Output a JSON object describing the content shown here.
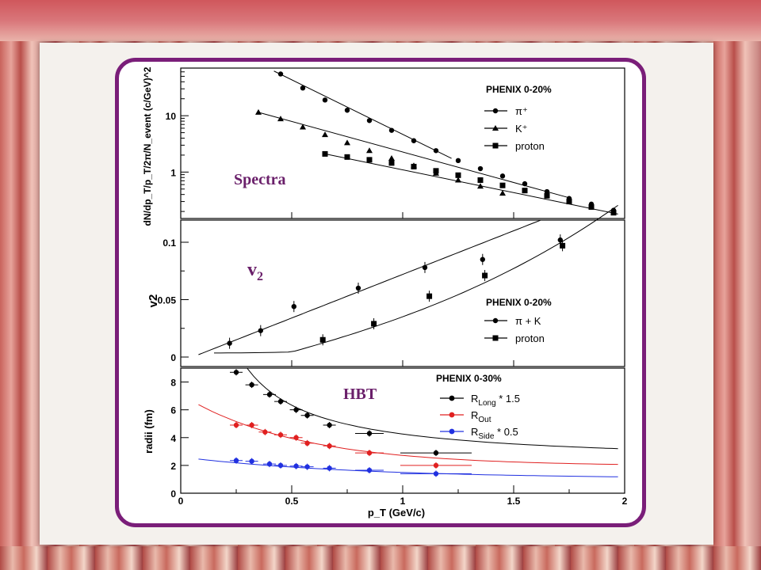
{
  "overlays": {
    "spectra": "Spectra",
    "v2": "v2",
    "hbt": "HBT"
  },
  "chart_data": [
    {
      "type": "scatter",
      "ylabel": "dN/dp_T/p_T/2π/N_event (c/GeV)^2",
      "yscale": "log",
      "ylim": [
        0.15,
        70
      ],
      "xlim": [
        0,
        2
      ],
      "yticklabels": [
        "10",
        "1"
      ],
      "legend_title": "PHENIX 0-20%",
      "legend_position": "top-right",
      "series": [
        {
          "name": "π⁺",
          "marker": "circle",
          "x": [
            0.45,
            0.55,
            0.65,
            0.75,
            0.85,
            0.95,
            1.05,
            1.15,
            1.25,
            1.35,
            1.45,
            1.55,
            1.65,
            1.75,
            1.85,
            1.95
          ],
          "y": [
            55,
            31,
            19,
            12.5,
            8.2,
            5.5,
            3.6,
            2.4,
            1.6,
            1.15,
            0.85,
            0.62,
            0.45,
            0.34,
            0.27,
            0.21
          ]
        },
        {
          "name": "K⁺",
          "marker": "triangle",
          "x": [
            0.35,
            0.45,
            0.55,
            0.65,
            0.75,
            0.85,
            0.95,
            1.05,
            1.15,
            1.25,
            1.35,
            1.45
          ],
          "y": [
            11.5,
            8.8,
            6.3,
            4.6,
            3.3,
            2.4,
            1.75,
            1.3,
            0.95,
            0.72,
            0.56,
            0.42
          ]
        },
        {
          "name": "proton",
          "marker": "square",
          "x": [
            0.65,
            0.75,
            0.85,
            0.95,
            1.05,
            1.15,
            1.25,
            1.35,
            1.45,
            1.55,
            1.65,
            1.75,
            1.85,
            1.95
          ],
          "y": [
            2.1,
            1.85,
            1.65,
            1.45,
            1.25,
            1.05,
            0.88,
            0.72,
            0.58,
            0.47,
            0.38,
            0.3,
            0.24,
            0.19
          ]
        }
      ]
    },
    {
      "type": "scatter",
      "ylabel": "v2",
      "xlim": [
        0,
        2
      ],
      "ylim": [
        0,
        0.11
      ],
      "yticks": [
        0,
        0.05,
        0.1
      ],
      "yticklabels": [
        "0",
        "0.05",
        "0.1"
      ],
      "legend_title": "PHENIX 0-20%",
      "legend_position": "bottom-right",
      "series": [
        {
          "name": "π + K",
          "marker": "circle",
          "x": [
            0.22,
            0.36,
            0.51,
            0.8,
            1.1,
            1.36,
            1.71
          ],
          "y": [
            0.012,
            0.023,
            0.044,
            0.06,
            0.078,
            0.085,
            0.102
          ]
        },
        {
          "name": "proton",
          "marker": "square",
          "x": [
            0.64,
            0.87,
            1.12,
            1.37,
            1.72
          ],
          "y": [
            0.015,
            0.029,
            0.053,
            0.071,
            0.097
          ]
        }
      ]
    },
    {
      "type": "scatter",
      "ylabel": "radii (fm)",
      "xlabel": "p_T (GeV/c)",
      "xlim": [
        0,
        2
      ],
      "ylim": [
        0,
        9
      ],
      "xticks": [
        0,
        0.5,
        1,
        1.5,
        2
      ],
      "xticklabels": [
        "0",
        "0.5",
        "1",
        "1.5",
        "2"
      ],
      "yticks": [
        0,
        2,
        4,
        6,
        8
      ],
      "yticklabels": [
        "0",
        "2",
        "4",
        "6",
        "8"
      ],
      "legend_title": "PHENIX 0-30%",
      "legend_position": "top-right",
      "series": [
        {
          "name": "R_Long * 1.5",
          "color": "#000000",
          "x": [
            0.25,
            0.32,
            0.4,
            0.45,
            0.52,
            0.57,
            0.67,
            0.85,
            1.15
          ],
          "y": [
            8.7,
            7.8,
            7.1,
            6.6,
            6.0,
            5.6,
            4.9,
            4.3,
            2.9
          ]
        },
        {
          "name": "R_Out",
          "color": "#e02020",
          "x": [
            0.25,
            0.32,
            0.38,
            0.45,
            0.52,
            0.57,
            0.67,
            0.85,
            1.15
          ],
          "y": [
            4.9,
            4.9,
            4.4,
            4.2,
            4.0,
            3.6,
            3.4,
            2.9,
            2.0
          ]
        },
        {
          "name": "R_Side * 0.5",
          "color": "#2030e0",
          "x": [
            0.25,
            0.32,
            0.4,
            0.45,
            0.52,
            0.57,
            0.67,
            0.85,
            1.15
          ],
          "y": [
            2.35,
            2.3,
            2.1,
            2.0,
            1.95,
            1.9,
            1.8,
            1.65,
            1.4
          ]
        }
      ]
    }
  ]
}
